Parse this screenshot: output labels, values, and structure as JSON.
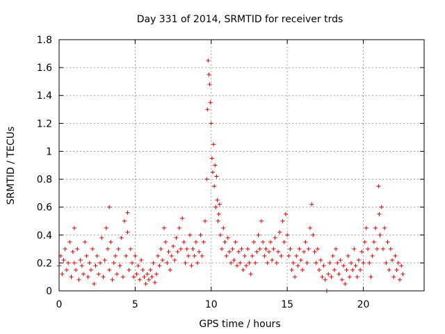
{
  "chart_data": {
    "type": "scatter",
    "title": "Day 331 of 2014, SRMTID for receiver trds",
    "xlabel": "GPS time / hours",
    "ylabel": "SRMTID / TECUs",
    "xlim": [
      0,
      24
    ],
    "ylim": [
      0,
      1.8
    ],
    "x_ticks": [
      0,
      5,
      10,
      15,
      20
    ],
    "x_tick_labels": [
      "0",
      "5",
      "10",
      "15",
      "20"
    ],
    "y_ticks": [
      0,
      0.2,
      0.4,
      0.6,
      0.8,
      1.0,
      1.2,
      1.4,
      1.6,
      1.8
    ],
    "y_tick_labels": [
      "0",
      "0.2",
      "0.4",
      "0.6",
      "0.8",
      "1",
      "1.2",
      "1.4",
      "1.6",
      "1.8"
    ],
    "grid": true,
    "marker": "+",
    "color": "#e00000",
    "series": [
      {
        "name": "SRMTID",
        "points": [
          [
            0.0,
            0.18
          ],
          [
            0.1,
            0.25
          ],
          [
            0.2,
            0.12
          ],
          [
            0.3,
            0.22
          ],
          [
            0.4,
            0.3
          ],
          [
            0.5,
            0.15
          ],
          [
            0.6,
            0.2
          ],
          [
            0.7,
            0.35
          ],
          [
            0.8,
            0.1
          ],
          [
            0.9,
            0.28
          ],
          [
            1.0,
            0.45
          ],
          [
            1.0,
            0.2
          ],
          [
            1.1,
            0.15
          ],
          [
            1.2,
            0.3
          ],
          [
            1.3,
            0.08
          ],
          [
            1.4,
            0.22
          ],
          [
            1.5,
            0.18
          ],
          [
            1.6,
            0.12
          ],
          [
            1.7,
            0.35
          ],
          [
            1.8,
            0.25
          ],
          [
            1.9,
            0.1
          ],
          [
            2.0,
            0.2
          ],
          [
            2.1,
            0.15
          ],
          [
            2.2,
            0.3
          ],
          [
            2.3,
            0.05
          ],
          [
            2.4,
            0.18
          ],
          [
            2.5,
            0.25
          ],
          [
            2.6,
            0.12
          ],
          [
            2.7,
            0.2
          ],
          [
            2.8,
            0.38
          ],
          [
            2.9,
            0.1
          ],
          [
            3.0,
            0.22
          ],
          [
            3.1,
            0.45
          ],
          [
            3.2,
            0.3
          ],
          [
            3.3,
            0.6
          ],
          [
            3.3,
            0.15
          ],
          [
            3.4,
            0.35
          ],
          [
            3.5,
            0.08
          ],
          [
            3.6,
            0.2
          ],
          [
            3.7,
            0.25
          ],
          [
            3.8,
            0.12
          ],
          [
            3.9,
            0.3
          ],
          [
            4.0,
            0.18
          ],
          [
            4.1,
            0.38
          ],
          [
            4.2,
            0.1
          ],
          [
            4.3,
            0.5
          ],
          [
            4.4,
            0.25
          ],
          [
            4.5,
            0.56
          ],
          [
            4.5,
            0.42
          ],
          [
            4.6,
            0.15
          ],
          [
            4.7,
            0.3
          ],
          [
            4.8,
            0.2
          ],
          [
            4.9,
            0.1
          ],
          [
            5.0,
            0.25
          ],
          [
            5.1,
            0.12
          ],
          [
            5.2,
            0.18
          ],
          [
            5.3,
            0.08
          ],
          [
            5.4,
            0.22
          ],
          [
            5.5,
            0.15
          ],
          [
            5.6,
            0.1
          ],
          [
            5.7,
            0.05
          ],
          [
            5.8,
            0.12
          ],
          [
            5.9,
            0.08
          ],
          [
            6.0,
            0.15
          ],
          [
            6.1,
            0.1
          ],
          [
            6.2,
            0.2
          ],
          [
            6.3,
            0.06
          ],
          [
            6.4,
            0.12
          ],
          [
            6.5,
            0.25
          ],
          [
            6.6,
            0.18
          ],
          [
            6.7,
            0.3
          ],
          [
            6.8,
            0.22
          ],
          [
            6.9,
            0.45
          ],
          [
            7.0,
            0.35
          ],
          [
            7.1,
            0.2
          ],
          [
            7.2,
            0.28
          ],
          [
            7.3,
            0.15
          ],
          [
            7.4,
            0.25
          ],
          [
            7.5,
            0.32
          ],
          [
            7.6,
            0.22
          ],
          [
            7.7,
            0.38
          ],
          [
            7.8,
            0.28
          ],
          [
            7.9,
            0.45
          ],
          [
            8.0,
            0.3
          ],
          [
            8.1,
            0.52
          ],
          [
            8.2,
            0.35
          ],
          [
            8.3,
            0.2
          ],
          [
            8.4,
            0.3
          ],
          [
            8.5,
            0.25
          ],
          [
            8.6,
            0.4
          ],
          [
            8.7,
            0.18
          ],
          [
            8.8,
            0.3
          ],
          [
            8.9,
            0.25
          ],
          [
            9.0,
            0.35
          ],
          [
            9.1,
            0.2
          ],
          [
            9.2,
            0.28
          ],
          [
            9.3,
            0.4
          ],
          [
            9.4,
            0.25
          ],
          [
            9.5,
            0.35
          ],
          [
            9.6,
            0.5
          ],
          [
            9.7,
            0.8
          ],
          [
            9.75,
            1.3
          ],
          [
            9.8,
            1.65
          ],
          [
            9.85,
            1.55
          ],
          [
            9.9,
            1.48
          ],
          [
            9.95,
            1.35
          ],
          [
            10.0,
            1.2
          ],
          [
            10.05,
            0.95
          ],
          [
            10.1,
            0.85
          ],
          [
            10.15,
            1.05
          ],
          [
            10.2,
            0.75
          ],
          [
            10.25,
            0.9
          ],
          [
            10.3,
            0.6
          ],
          [
            10.35,
            0.82
          ],
          [
            10.4,
            0.65
          ],
          [
            10.45,
            0.5
          ],
          [
            10.5,
            0.55
          ],
          [
            10.55,
            0.62
          ],
          [
            10.6,
            0.4
          ],
          [
            10.7,
            0.3
          ],
          [
            10.8,
            0.45
          ],
          [
            10.9,
            0.35
          ],
          [
            11.0,
            0.25
          ],
          [
            11.1,
            0.38
          ],
          [
            11.2,
            0.28
          ],
          [
            11.3,
            0.2
          ],
          [
            11.4,
            0.3
          ],
          [
            11.5,
            0.22
          ],
          [
            11.6,
            0.35
          ],
          [
            11.7,
            0.18
          ],
          [
            11.8,
            0.28
          ],
          [
            11.9,
            0.2
          ],
          [
            12.0,
            0.3
          ],
          [
            12.1,
            0.15
          ],
          [
            12.2,
            0.25
          ],
          [
            12.3,
            0.18
          ],
          [
            12.4,
            0.3
          ],
          [
            12.5,
            0.2
          ],
          [
            12.6,
            0.12
          ],
          [
            12.7,
            0.25
          ],
          [
            12.8,
            0.35
          ],
          [
            12.9,
            0.2
          ],
          [
            13.0,
            0.28
          ],
          [
            13.1,
            0.4
          ],
          [
            13.2,
            0.3
          ],
          [
            13.3,
            0.5
          ],
          [
            13.4,
            0.35
          ],
          [
            13.5,
            0.25
          ],
          [
            13.6,
            0.3
          ],
          [
            13.7,
            0.2
          ],
          [
            13.8,
            0.28
          ],
          [
            13.9,
            0.35
          ],
          [
            14.0,
            0.22
          ],
          [
            14.1,
            0.3
          ],
          [
            14.2,
            0.38
          ],
          [
            14.3,
            0.2
          ],
          [
            14.4,
            0.28
          ],
          [
            14.5,
            0.42
          ],
          [
            14.6,
            0.25
          ],
          [
            14.7,
            0.5
          ],
          [
            14.8,
            0.35
          ],
          [
            14.9,
            0.55
          ],
          [
            15.0,
            0.4
          ],
          [
            15.1,
            0.25
          ],
          [
            15.2,
            0.3
          ],
          [
            15.3,
            0.15
          ],
          [
            15.4,
            0.2
          ],
          [
            15.5,
            0.1
          ],
          [
            15.6,
            0.25
          ],
          [
            15.7,
            0.18
          ],
          [
            15.8,
            0.3
          ],
          [
            15.9,
            0.22
          ],
          [
            16.0,
            0.15
          ],
          [
            16.1,
            0.28
          ],
          [
            16.2,
            0.35
          ],
          [
            16.3,
            0.2
          ],
          [
            16.4,
            0.3
          ],
          [
            16.5,
            0.45
          ],
          [
            16.6,
            0.62
          ],
          [
            16.7,
            0.4
          ],
          [
            16.8,
            0.28
          ],
          [
            16.9,
            0.2
          ],
          [
            17.0,
            0.3
          ],
          [
            17.1,
            0.15
          ],
          [
            17.2,
            0.22
          ],
          [
            17.3,
            0.1
          ],
          [
            17.4,
            0.18
          ],
          [
            17.5,
            0.08
          ],
          [
            17.6,
            0.0
          ],
          [
            17.7,
            0.12
          ],
          [
            17.8,
            0.2
          ],
          [
            17.9,
            0.1
          ],
          [
            18.0,
            0.25
          ],
          [
            18.1,
            0.15
          ],
          [
            18.2,
            0.3
          ],
          [
            18.3,
            0.2
          ],
          [
            18.4,
            0.12
          ],
          [
            18.5,
            0.22
          ],
          [
            18.6,
            0.08
          ],
          [
            18.7,
            0.18
          ],
          [
            18.8,
            0.05
          ],
          [
            18.9,
            0.15
          ],
          [
            19.0,
            0.25
          ],
          [
            19.1,
            0.1
          ],
          [
            19.2,
            0.2
          ],
          [
            19.3,
            0.15
          ],
          [
            19.4,
            0.3
          ],
          [
            19.5,
            0.18
          ],
          [
            19.6,
            0.1
          ],
          [
            19.7,
            0.22
          ],
          [
            19.8,
            0.15
          ],
          [
            19.9,
            0.28
          ],
          [
            20.0,
            0.2
          ],
          [
            20.1,
            0.35
          ],
          [
            20.2,
            0.45
          ],
          [
            20.3,
            0.3
          ],
          [
            20.4,
            0.2
          ],
          [
            20.5,
            0.1
          ],
          [
            20.6,
            0.25
          ],
          [
            20.7,
            0.35
          ],
          [
            20.8,
            0.45
          ],
          [
            20.9,
            0.3
          ],
          [
            21.0,
            0.75
          ],
          [
            21.05,
            0.55
          ],
          [
            21.1,
            0.4
          ],
          [
            21.2,
            0.6
          ],
          [
            21.3,
            0.3
          ],
          [
            21.4,
            0.45
          ],
          [
            21.5,
            0.2
          ],
          [
            21.6,
            0.35
          ],
          [
            21.7,
            0.15
          ],
          [
            21.8,
            0.3
          ],
          [
            21.9,
            0.22
          ],
          [
            22.0,
            0.1
          ],
          [
            22.1,
            0.25
          ],
          [
            22.2,
            0.15
          ],
          [
            22.3,
            0.2
          ],
          [
            22.4,
            0.08
          ],
          [
            22.5,
            0.18
          ],
          [
            22.6,
            0.12
          ]
        ]
      }
    ]
  }
}
